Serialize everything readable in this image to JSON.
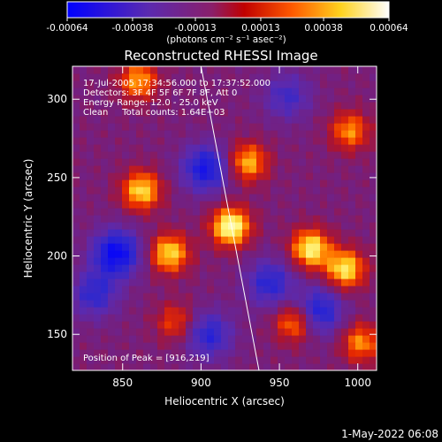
{
  "colorbar": {
    "ticks": [
      "-0.00064",
      "-0.00038",
      "-0.00013",
      "0.00013",
      "0.00038",
      "0.00064"
    ],
    "tick_values": [
      -0.00064,
      -0.00038,
      -0.00013,
      0.00013,
      0.00038,
      0.00064
    ],
    "range": [
      -0.00064,
      0.00064
    ],
    "units": "(photons cm⁻² s⁻¹ asec⁻²)",
    "colors": [
      "#0000ff",
      "#5a2ab0",
      "#8a1f6a",
      "#c00000",
      "#ff5a00",
      "#ffd21e",
      "#ffffff"
    ]
  },
  "chart_data": {
    "type": "heatmap",
    "title": "Reconstructed RHESSI Image",
    "xlabel": "Heliocentric X (arcsec)",
    "ylabel": "Heliocentric Y (arcsec)",
    "xlim": [
      818,
      1012
    ],
    "ylim": [
      127,
      321
    ],
    "x_ticks": [
      850,
      900,
      950,
      1000
    ],
    "y_ticks": [
      150,
      200,
      250,
      300
    ],
    "info_lines": [
      "17-Jul-2005 17:34:56.000 to 17:37:52.000",
      "Detectors: 3F 4F 5F 6F 7F 8F, Att 0",
      "Energy Range: 12.0 - 25.0 keV",
      "Clean     Total counts: 1.64E+03"
    ],
    "peak_label": "Position of Peak = [916,219]",
    "peak": [
      916,
      219
    ],
    "limb_line": [
      [
        900,
        321
      ],
      [
        937,
        127
      ]
    ],
    "bright_sources": [
      {
        "x": 919,
        "y": 219,
        "level": 1.0
      },
      {
        "x": 880,
        "y": 202,
        "level": 0.8
      },
      {
        "x": 862,
        "y": 242,
        "level": 0.8
      },
      {
        "x": 970,
        "y": 205,
        "level": 0.9
      },
      {
        "x": 992,
        "y": 192,
        "level": 0.85
      },
      {
        "x": 930,
        "y": 260,
        "level": 0.7
      },
      {
        "x": 860,
        "y": 312,
        "level": 0.65
      },
      {
        "x": 995,
        "y": 280,
        "level": 0.6
      },
      {
        "x": 960,
        "y": 158,
        "level": 0.65
      },
      {
        "x": 1002,
        "y": 145,
        "level": 0.6
      },
      {
        "x": 884,
        "y": 158,
        "level": 0.45
      }
    ],
    "dark_regions": [
      {
        "x": 846,
        "y": 202,
        "level": -0.9
      },
      {
        "x": 903,
        "y": 256,
        "level": -0.75
      },
      {
        "x": 975,
        "y": 165,
        "level": -0.7
      },
      {
        "x": 944,
        "y": 183,
        "level": -0.6
      },
      {
        "x": 832,
        "y": 176,
        "level": -0.55
      },
      {
        "x": 905,
        "y": 150,
        "level": -0.6
      },
      {
        "x": 955,
        "y": 302,
        "level": -0.45
      }
    ]
  },
  "footer": {
    "timestamp": "1-May-2022 06:08"
  }
}
